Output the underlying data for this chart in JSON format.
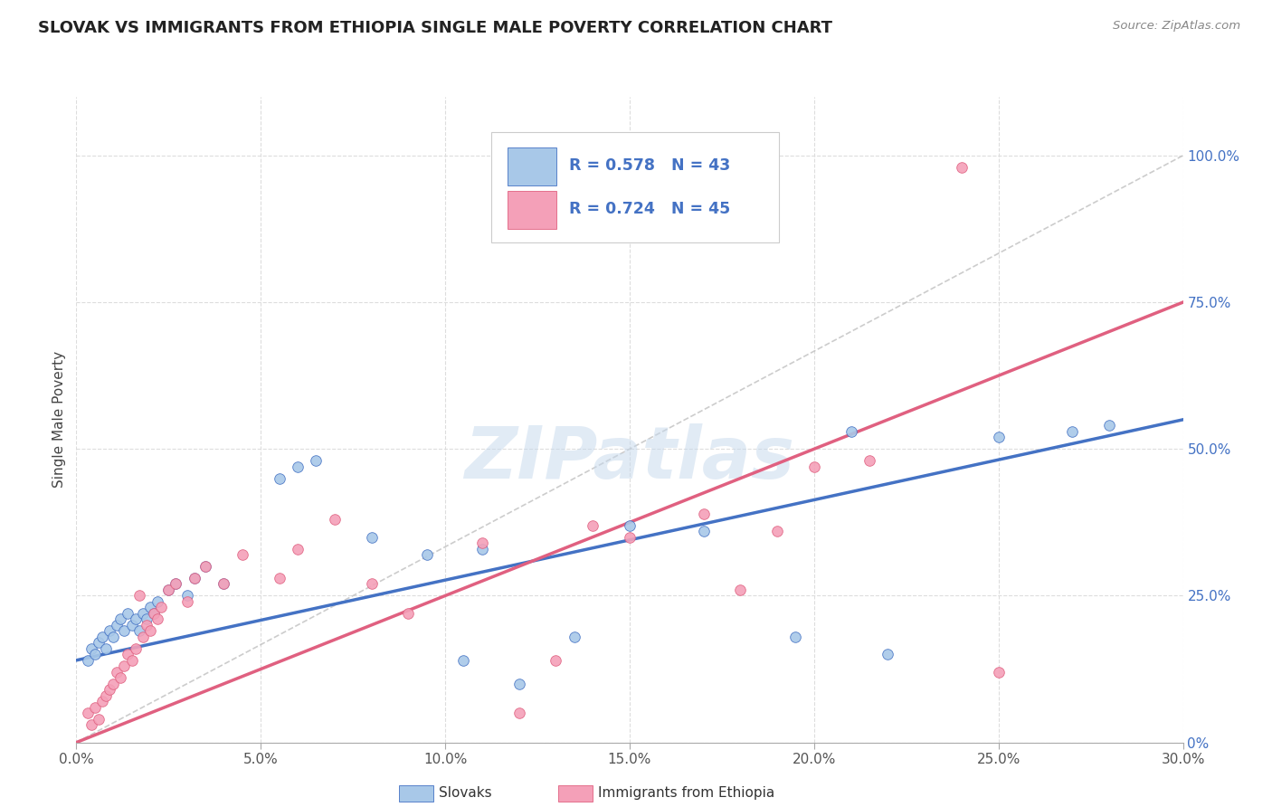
{
  "title": "SLOVAK VS IMMIGRANTS FROM ETHIOPIA SINGLE MALE POVERTY CORRELATION CHART",
  "source": "Source: ZipAtlas.com",
  "xlabel_ticks": [
    "0.0%",
    "5.0%",
    "10.0%",
    "15.0%",
    "20.0%",
    "25.0%",
    "30.0%"
  ],
  "xlabel_vals": [
    0.0,
    5.0,
    10.0,
    15.0,
    20.0,
    25.0,
    30.0
  ],
  "ylabel_ticks": [
    "0%",
    "25.0%",
    "50.0%",
    "75.0%",
    "100.0%"
  ],
  "ylabel_vals": [
    0,
    25,
    50,
    75,
    100
  ],
  "xlim": [
    0,
    30
  ],
  "ylim": [
    0,
    110
  ],
  "slovak_color": "#A8C8E8",
  "ethiopia_color": "#F4A0B8",
  "slovak_line_color": "#4472C4",
  "ethiopia_line_color": "#E06080",
  "ref_line_color": "#C0C0C0",
  "legend_R1": "R = 0.578",
  "legend_N1": "N = 43",
  "legend_R2": "R = 0.724",
  "legend_N2": "N = 45",
  "watermark": "ZIPatlas",
  "ylabel": "Single Male Poverty",
  "slovak_line_x0": 0,
  "slovak_line_y0": 14,
  "slovak_line_x1": 30,
  "slovak_line_y1": 55,
  "ethiopia_line_x0": 0,
  "ethiopia_line_y0": 0,
  "ethiopia_line_x1": 30,
  "ethiopia_line_y1": 75,
  "slovak_x": [
    0.3,
    0.4,
    0.5,
    0.6,
    0.7,
    0.8,
    0.9,
    1.0,
    1.1,
    1.2,
    1.3,
    1.4,
    1.5,
    1.6,
    1.7,
    1.8,
    1.9,
    2.0,
    2.1,
    2.2,
    2.5,
    2.7,
    3.0,
    3.2,
    3.5,
    4.0,
    5.5,
    6.0,
    6.5,
    8.0,
    9.5,
    10.5,
    11.0,
    12.0,
    13.5,
    15.0,
    17.0,
    19.5,
    21.0,
    22.0,
    25.0,
    27.0,
    28.0
  ],
  "slovak_y": [
    14,
    16,
    15,
    17,
    18,
    16,
    19,
    18,
    20,
    21,
    19,
    22,
    20,
    21,
    19,
    22,
    21,
    23,
    22,
    24,
    26,
    27,
    25,
    28,
    30,
    27,
    45,
    47,
    48,
    35,
    32,
    14,
    33,
    10,
    18,
    37,
    36,
    18,
    53,
    15,
    52,
    53,
    54
  ],
  "ethiopia_x": [
    0.3,
    0.4,
    0.5,
    0.6,
    0.7,
    0.8,
    0.9,
    1.0,
    1.1,
    1.2,
    1.3,
    1.4,
    1.5,
    1.6,
    1.7,
    1.8,
    1.9,
    2.0,
    2.1,
    2.2,
    2.3,
    2.5,
    2.7,
    3.0,
    3.2,
    3.5,
    4.0,
    4.5,
    5.5,
    6.0,
    7.0,
    8.0,
    9.0,
    11.0,
    12.0,
    13.0,
    14.0,
    15.0,
    17.0,
    18.0,
    19.0,
    20.0,
    21.5,
    24.0,
    25.0
  ],
  "ethiopia_y": [
    5,
    3,
    6,
    4,
    7,
    8,
    9,
    10,
    12,
    11,
    13,
    15,
    14,
    16,
    25,
    18,
    20,
    19,
    22,
    21,
    23,
    26,
    27,
    24,
    28,
    30,
    27,
    32,
    28,
    33,
    38,
    27,
    22,
    34,
    5,
    14,
    37,
    35,
    39,
    26,
    36,
    47,
    48,
    98,
    12
  ]
}
